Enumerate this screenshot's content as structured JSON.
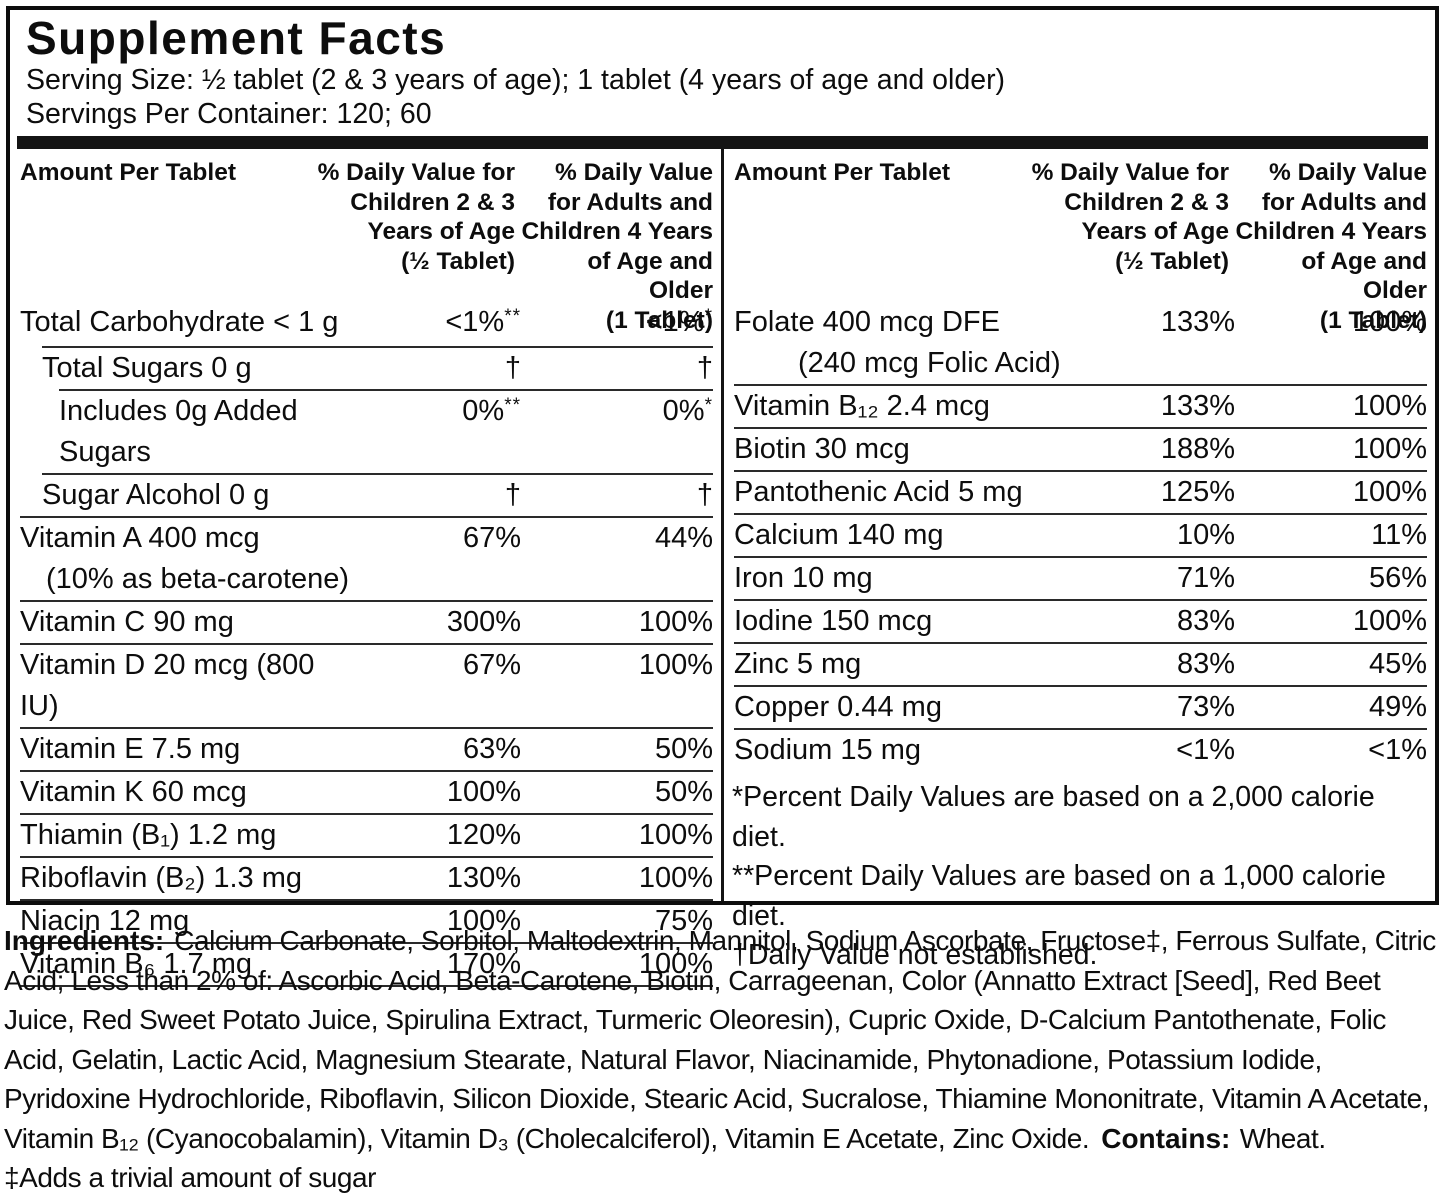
{
  "title": "Supplement Facts",
  "serving": {
    "serving_size": "Serving Size:  ½ tablet (2 & 3 years of age); 1 tablet (4 years of age and older)",
    "servings_per_container": "Servings Per Container:  120; 60"
  },
  "columns": {
    "amount_header": "Amount Per Tablet",
    "dv_children_header": "% Daily Value for\nChildren 2 & 3\nYears of Age\n(½ Tablet)",
    "dv_adults_header": "% Daily Value\nfor Adults and\nChildren 4 Years\nof Age and Older\n(1 Tablet)"
  },
  "left_table": {
    "rows": [
      {
        "name": "Total Carbohydrate < 1 g",
        "indent": 0,
        "dv1": "<1%",
        "dv1_sup": "**",
        "dv2": "<1%",
        "dv2_sup": "*"
      },
      {
        "name": "Total Sugars 0 g",
        "indent": 1,
        "dv1": "†",
        "dv2": "†"
      },
      {
        "name": "Includes 0g Added Sugars",
        "indent": 2,
        "dv1": "0%",
        "dv1_sup": "**",
        "dv2": "0%",
        "dv2_sup": "*"
      },
      {
        "name": "Sugar Alcohol 0 g",
        "indent": 1,
        "dv1": "†",
        "dv2": "†"
      },
      {
        "name": "Vitamin A 400 mcg",
        "name2": "(10% as beta-carotene)",
        "indent": 0,
        "dv1": "67%",
        "dv2": "44%"
      },
      {
        "name": "Vitamin C 90 mg",
        "indent": 0,
        "dv1": "300%",
        "dv2": "100%"
      },
      {
        "name": "Vitamin D 20 mcg (800 IU)",
        "indent": 0,
        "dv1": "67%",
        "dv2": "100%"
      },
      {
        "name": "Vitamin E 7.5 mg",
        "indent": 0,
        "dv1": "63%",
        "dv2": "50%"
      },
      {
        "name": "Vitamin K 60 mcg",
        "indent": 0,
        "dv1": "100%",
        "dv2": "50%"
      },
      {
        "name": "Thiamin (B₁) 1.2 mg",
        "indent": 0,
        "dv1": "120%",
        "dv2": "100%"
      },
      {
        "name": "Riboflavin (B₂) 1.3 mg",
        "indent": 0,
        "dv1": "130%",
        "dv2": "100%"
      },
      {
        "name": "Niacin 12 mg",
        "indent": 0,
        "dv1": "100%",
        "dv2": "75%"
      },
      {
        "name": "Vitamin B₆ 1.7 mg",
        "indent": 0,
        "dv1": "170%",
        "dv2": "100%"
      }
    ]
  },
  "right_table": {
    "rows": [
      {
        "name": "Folate 400 mcg DFE",
        "name2": "(240 mcg Folic Acid)",
        "indent": 0,
        "dv1": "133%",
        "dv2": "100%"
      },
      {
        "name": "Vitamin B₁₂ 2.4 mcg",
        "indent": 0,
        "dv1": "133%",
        "dv2": "100%"
      },
      {
        "name": "Biotin 30 mcg",
        "indent": 0,
        "dv1": "188%",
        "dv2": "100%"
      },
      {
        "name": "Pantothenic Acid 5 mg",
        "indent": 0,
        "dv1": "125%",
        "dv2": "100%"
      },
      {
        "name": "Calcium 140 mg",
        "indent": 0,
        "dv1": "10%",
        "dv2": "11%"
      },
      {
        "name": "Iron 10 mg",
        "indent": 0,
        "dv1": "71%",
        "dv2": "56%"
      },
      {
        "name": "Iodine 150 mcg",
        "indent": 0,
        "dv1": "83%",
        "dv2": "100%"
      },
      {
        "name": "Zinc 5 mg",
        "indent": 0,
        "dv1": "83%",
        "dv2": "45%"
      },
      {
        "name": "Copper 0.44 mg",
        "indent": 0,
        "dv1": "73%",
        "dv2": "49%"
      },
      {
        "name": "Sodium 15 mg",
        "indent": 0,
        "dv1": "<1%",
        "dv2": "<1%"
      }
    ]
  },
  "footnotes": [
    "*Percent Daily Values are based on a 2,000 calorie diet.",
    "**Percent Daily Values are based on a 1,000 calorie diet.",
    "†Daily Value not established."
  ],
  "ingredients": {
    "label": "Ingredients:",
    "text": "Calcium Carbonate, Sorbitol, Maltodextrin, Mannitol, Sodium Ascorbate, Fructose‡, Ferrous Sulfate, Citric Acid; Less than 2% of: Ascorbic Acid, Beta-Carotene, Biotin, Carrageenan, Color (Annatto Extract [Seed], Red Beet Juice, Red Sweet Potato Juice, Spirulina Extract, Turmeric Oleoresin), Cupric Oxide, D-Calcium Pantothenate, Folic Acid, Gelatin, Lactic Acid, Magnesium Stearate, Natural Flavor, Niacinamide, Phytonadione, Potassium Iodide, Pyridoxine Hydrochloride, Riboflavin, Silicon Dioxide, Stearic Acid, Sucralose, Thiamine Mononitrate, Vitamin A Acetate, Vitamin B₁₂ (Cyanocobalamin), Vitamin D₃ (Cholecalciferol), Vitamin E Acetate, Zinc Oxide.",
    "contains_label": "Contains:",
    "contains_text": "Wheat.",
    "sugar_note": "‡Adds a trivial amount of sugar"
  }
}
